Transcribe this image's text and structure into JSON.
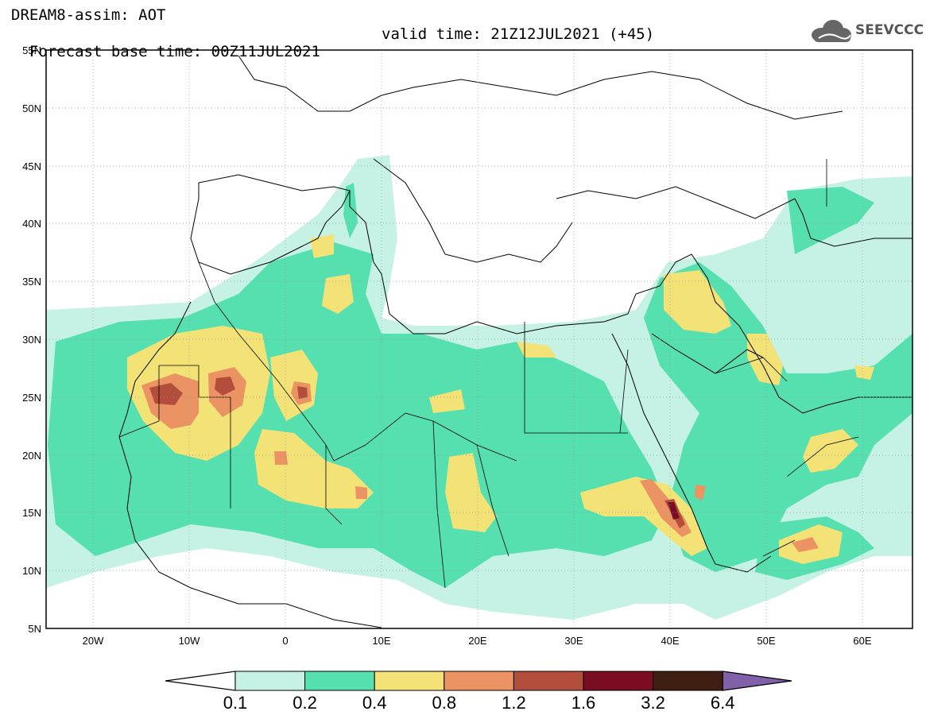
{
  "header": {
    "line1": "DREAM8-assim: AOT",
    "line2_base": "Forecast base time: 00Z11JUL2021",
    "line2_valid": "valid time: 21Z12JUL2021 (+45)"
  },
  "logo": {
    "text": "SEEVCCC",
    "icon": "cloud-icon"
  },
  "map": {
    "lon_range": [
      -25,
      65
    ],
    "lat_range": [
      5,
      55
    ],
    "lat_ticks": [
      "55N",
      "50N",
      "45N",
      "40N",
      "35N",
      "30N",
      "25N",
      "20N",
      "15N",
      "10N",
      "5N"
    ],
    "lon_ticks": [
      "20W",
      "10W",
      "0",
      "10E",
      "20E",
      "30E",
      "40E",
      "50E",
      "60E"
    ]
  },
  "colorbar": {
    "labels": [
      "0.1",
      "0.2",
      "0.4",
      "0.8",
      "1.2",
      "1.6",
      "3.2",
      "6.4"
    ],
    "colors": [
      "#ffffff",
      "#c6f2e5",
      "#56e0b0",
      "#f3e276",
      "#eb9363",
      "#b34e3c",
      "#7a0d22",
      "#3f1f12",
      "#8060a8"
    ]
  }
}
